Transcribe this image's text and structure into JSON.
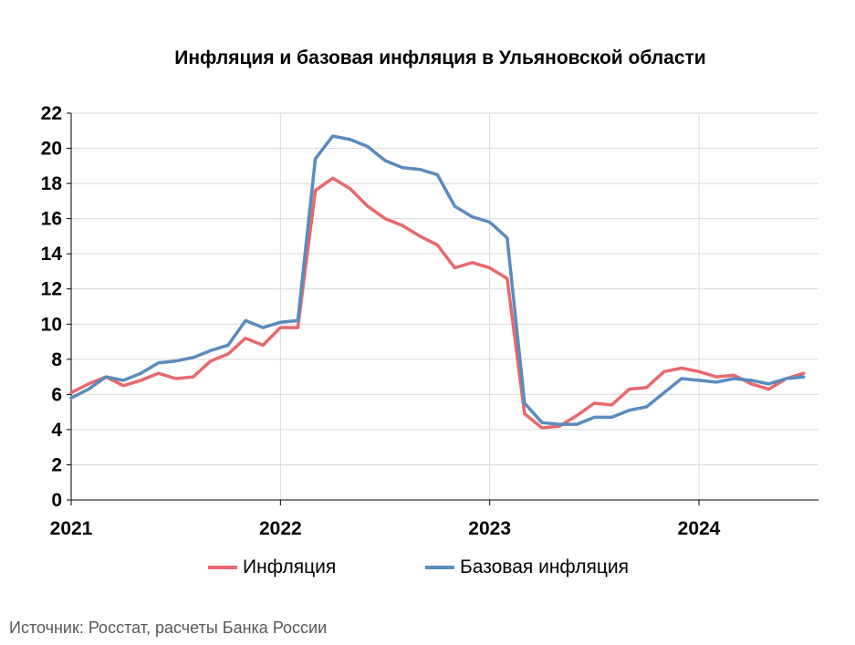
{
  "chart_data": {
    "type": "line",
    "title": "Инфляция и базовая инфляция в Ульяновской области",
    "xlabel": "",
    "ylabel": "",
    "ylim": [
      0,
      22
    ],
    "yticks": [
      0,
      2,
      4,
      6,
      8,
      10,
      12,
      14,
      16,
      18,
      20,
      22
    ],
    "x_start": "2021-01",
    "x_end": "2024-07",
    "x_tick_labels": [
      "2021",
      "2022",
      "2023",
      "2024"
    ],
    "grid": {
      "horizontal": true,
      "vertical": true
    },
    "legend_position": "bottom",
    "series": [
      {
        "name": "Инфляция",
        "color": "#E8686C",
        "values": [
          6.1,
          6.6,
          7.0,
          6.5,
          6.8,
          7.2,
          6.9,
          7.0,
          7.9,
          8.3,
          9.2,
          8.8,
          9.8,
          9.8,
          17.6,
          18.3,
          17.7,
          16.7,
          16.0,
          15.6,
          15.0,
          14.5,
          13.2,
          13.5,
          13.2,
          12.6,
          4.9,
          4.1,
          4.2,
          4.8,
          5.5,
          5.4,
          6.3,
          6.4,
          7.3,
          7.5,
          7.3,
          7.0,
          7.1,
          6.6,
          6.3,
          6.9,
          7.2
        ]
      },
      {
        "name": "Базовая инфляция",
        "color": "#5B8BBE",
        "values": [
          5.8,
          6.3,
          7.0,
          6.8,
          7.2,
          7.8,
          7.9,
          8.1,
          8.5,
          8.8,
          10.2,
          9.8,
          10.1,
          10.2,
          19.4,
          20.7,
          20.5,
          20.1,
          19.3,
          18.9,
          18.8,
          18.5,
          16.7,
          16.1,
          15.8,
          14.9,
          5.5,
          4.4,
          4.3,
          4.3,
          4.7,
          4.7,
          5.1,
          5.3,
          6.1,
          6.9,
          6.8,
          6.7,
          6.9,
          6.8,
          6.6,
          6.9,
          7.0
        ]
      }
    ]
  },
  "source_note": "Источник: Росстат, расчеты Банка России"
}
